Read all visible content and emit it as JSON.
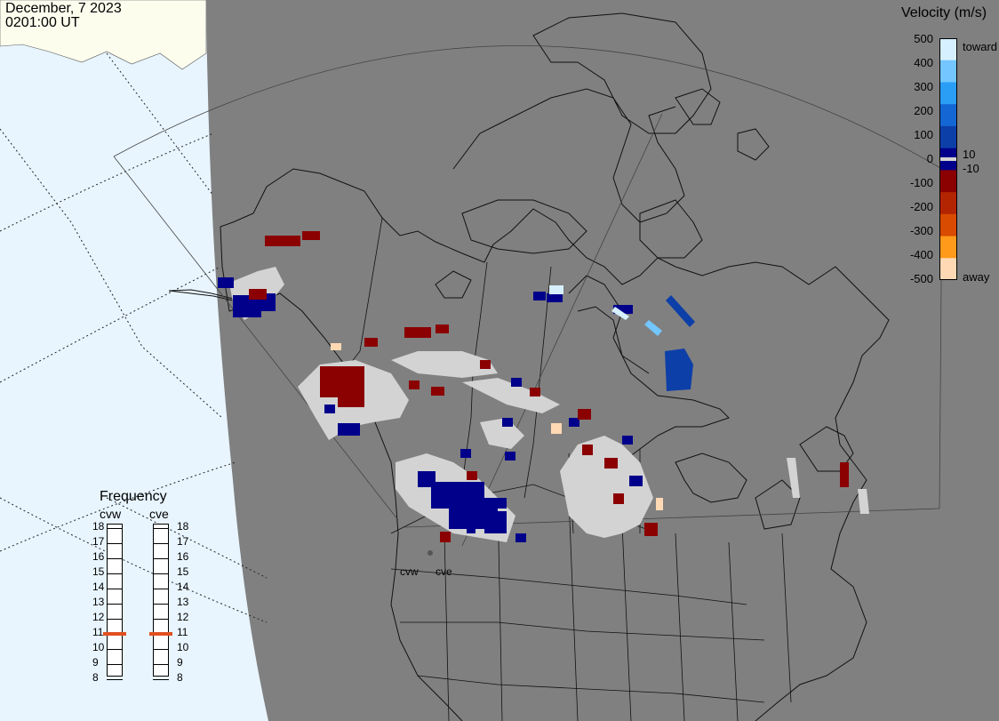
{
  "header": {
    "date": "December, 7 2023",
    "time": "0201:00 UT"
  },
  "velocity_scale": {
    "title": "Velocity (m/s)",
    "ticks": [
      "500",
      "400",
      "300",
      "200",
      "100",
      "0",
      "-100",
      "-200",
      "-300",
      "-400",
      "-500"
    ],
    "small_positive": "10",
    "small_negative": "-10",
    "toward_label": "toward",
    "away_label": "away",
    "colors": [
      "#d6f0ff",
      "#73c6ff",
      "#2a9ef5",
      "#1466d4",
      "#0d3fa8",
      "#00008b",
      "#8b0000",
      "#b32400",
      "#d94b00",
      "#ff9a1a",
      "#ffd9b3"
    ]
  },
  "frequency": {
    "title": "Frequency",
    "radars": [
      {
        "name": "cvw",
        "value_mhz": 11
      },
      {
        "name": "cve",
        "value_mhz": 11
      }
    ],
    "scale": [
      "18",
      "17",
      "16",
      "15",
      "14",
      "13",
      "12",
      "11",
      "10",
      "9",
      "8"
    ]
  },
  "radar_sites": [
    {
      "name": "cvw"
    },
    {
      "name": "cve"
    }
  ],
  "colors": {
    "night": "#808080",
    "day_land": "#fdfdee",
    "day_ocean": "#e8f5ff",
    "ground_scatter": "#d3d3d3",
    "marker": "#e05020"
  }
}
